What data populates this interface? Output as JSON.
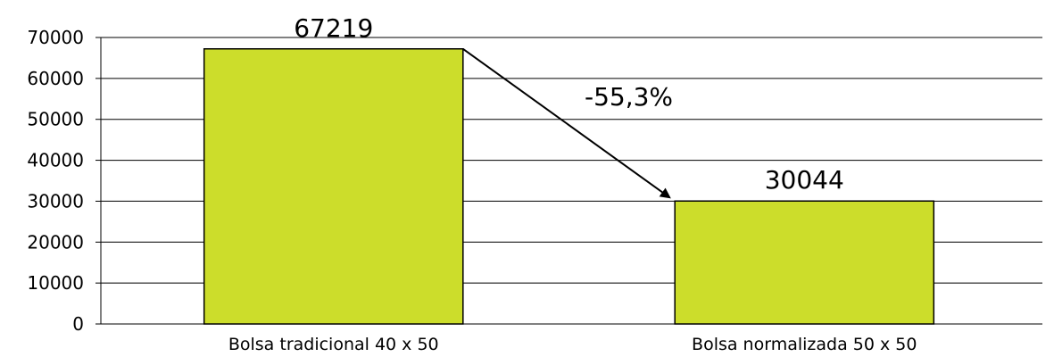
{
  "chart_data": {
    "type": "bar",
    "categories": [
      "Bolsa tradicional 40 x 50",
      "Bolsa normalizada 50 x 50"
    ],
    "values": [
      67219,
      30044
    ],
    "data_labels": [
      "67219",
      "30044"
    ],
    "title": "",
    "xlabel": "",
    "ylabel": "",
    "ylim": [
      0,
      70000
    ],
    "yticks": [
      0,
      10000,
      20000,
      30000,
      40000,
      50000,
      60000,
      70000
    ],
    "ytick_labels": [
      "0",
      "10000",
      "20000",
      "30000",
      "40000",
      "50000",
      "60000",
      "70000"
    ],
    "grid": true,
    "legend": "none",
    "bar_color": "#CCDD2B",
    "bar_edge_color": "#000000",
    "annotation": {
      "text": "-55,3%",
      "arrow": "from top of first bar to top of second bar"
    }
  }
}
